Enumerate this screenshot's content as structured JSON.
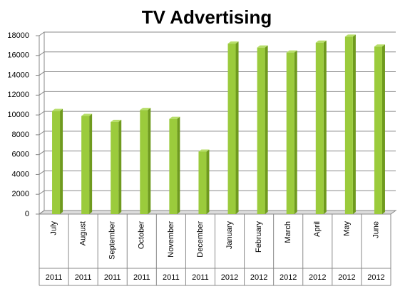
{
  "chart_data": {
    "type": "bar",
    "title": "TV Advertising",
    "categories": [
      "July",
      "August",
      "September",
      "October",
      "November",
      "December",
      "January",
      "February",
      "March",
      "April",
      "May",
      "June"
    ],
    "category_groups": [
      "2011",
      "2011",
      "2011",
      "2011",
      "2011",
      "2011",
      "2012",
      "2012",
      "2012",
      "2012",
      "2012",
      "2012"
    ],
    "values": [
      10400,
      9900,
      9300,
      10500,
      9600,
      6300,
      17200,
      16800,
      16300,
      17300,
      17900,
      16900
    ],
    "color": "#9bcb3c",
    "ylim": [
      0,
      18000
    ],
    "yticks": [
      0,
      2000,
      4000,
      6000,
      8000,
      10000,
      12000,
      14000,
      16000,
      18000
    ],
    "grid": true
  }
}
